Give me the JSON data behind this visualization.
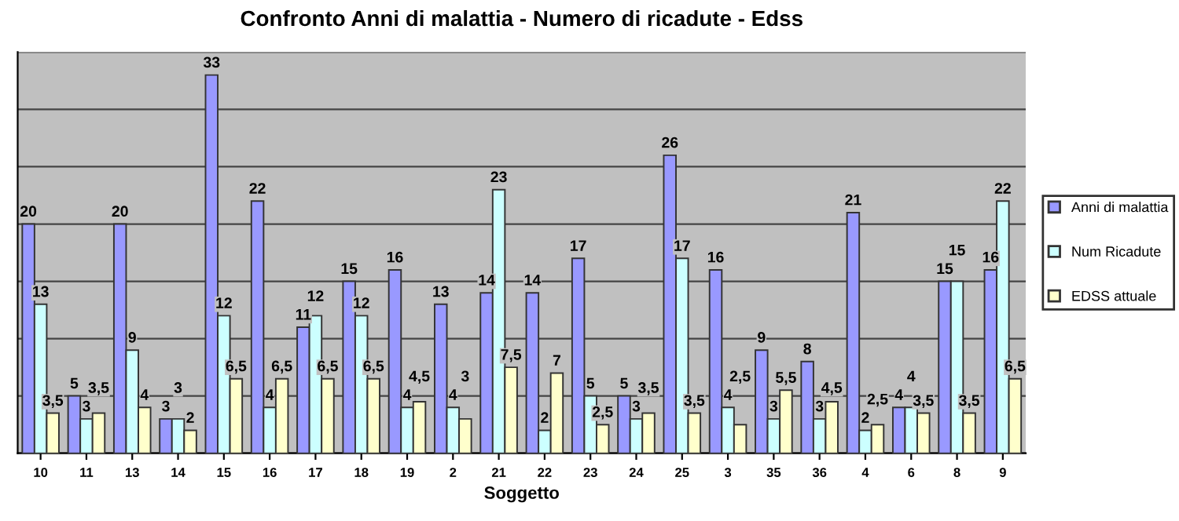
{
  "chart_data": {
    "type": "bar",
    "title": "Confronto Anni di malattia - Numero di ricadute - Edss",
    "xlabel": "Soggetto",
    "categories": [
      "10",
      "11",
      "13",
      "14",
      "15",
      "16",
      "17",
      "18",
      "19",
      "2",
      "21",
      "22",
      "23",
      "24",
      "25",
      "3",
      "35",
      "36",
      "4",
      "6",
      "8",
      "9"
    ],
    "series": [
      {
        "name": "Anni di malattia",
        "color": "#9999ff",
        "values": [
          20,
          5,
          20,
          3,
          33,
          22,
          11,
          15,
          16,
          13,
          14,
          14,
          17,
          5,
          26,
          16,
          9,
          8,
          21,
          4,
          15,
          16
        ],
        "value_labels": [
          "20",
          "5",
          "20",
          "3",
          "33",
          "22",
          "11",
          "15",
          "16",
          "13",
          "14",
          "14",
          "17",
          "5",
          "26",
          "16",
          "9",
          "8",
          "21",
          "4",
          "15",
          "16"
        ]
      },
      {
        "name": "Num Ricadute",
        "color": "#ccffff",
        "values": [
          13,
          3,
          9,
          3,
          12,
          4,
          12,
          12,
          4,
          4,
          23,
          2,
          5,
          3,
          17,
          4,
          3,
          3,
          2,
          4,
          15,
          22
        ],
        "value_labels": [
          "13",
          "3",
          "9",
          "3",
          "12",
          "4",
          "12",
          "12",
          "4",
          "4",
          "23",
          "2",
          "5",
          "3",
          "17",
          "4",
          "3",
          "3",
          "2",
          "4",
          "15",
          "22"
        ]
      },
      {
        "name": "EDSS attuale",
        "color": "#ffffcc",
        "values": [
          3.5,
          3.5,
          4,
          2,
          6.5,
          6.5,
          6.5,
          6.5,
          4.5,
          3,
          7.5,
          7,
          2.5,
          3.5,
          3.5,
          2.5,
          5.5,
          4.5,
          2.5,
          3.5,
          3.5,
          6.5
        ],
        "value_labels": [
          "3,5",
          "3,5",
          "4",
          "2",
          "6,5",
          "6,5",
          "6,5",
          "6,5",
          "4,5",
          "3",
          "7,5",
          "7",
          "2,5",
          "3,5",
          "3,5",
          "2,5",
          "5,5",
          "4,5",
          "2,5",
          "3,5",
          "3,5",
          "6,5"
        ]
      }
    ],
    "ylim": [
      0,
      35
    ],
    "yticks": [
      {
        "value": 0,
        "label": null
      },
      {
        "value": 5,
        "label": null
      },
      {
        "value": 10,
        "label": null
      },
      {
        "value": 15,
        "label": null
      },
      {
        "value": 20,
        "label": null
      },
      {
        "value": 25,
        "label": null
      },
      {
        "value": 30,
        "label": null
      },
      {
        "value": 35,
        "label": null
      }
    ],
    "tick_labels": "x",
    "grid": "y",
    "legend": "right"
  }
}
